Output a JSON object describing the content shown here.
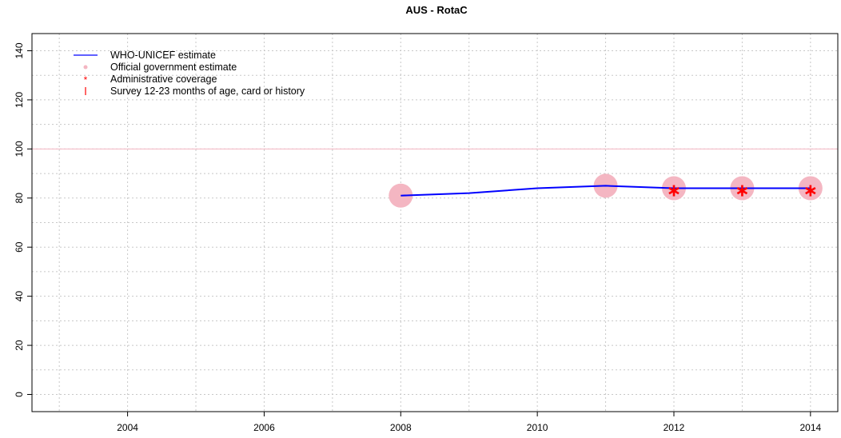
{
  "chart_data": {
    "type": "line",
    "title": "AUS  -  RotaC",
    "xlabel": "",
    "ylabel": "",
    "xlim": [
      2002.6,
      2014.4
    ],
    "ylim": [
      -7,
      147
    ],
    "x_ticks": [
      2004,
      2006,
      2008,
      2010,
      2012,
      2014
    ],
    "x_tick_labels": [
      "2004",
      "2006",
      "2008",
      "2010",
      "2012",
      "2014"
    ],
    "y_ticks": [
      0,
      20,
      40,
      60,
      80,
      100,
      120,
      140
    ],
    "y_tick_labels": [
      "0",
      "20",
      "40",
      "60",
      "80",
      "100",
      "120",
      "140"
    ],
    "x_grid": [
      2003,
      2004,
      2005,
      2006,
      2007,
      2008,
      2009,
      2010,
      2011,
      2012,
      2013,
      2014
    ],
    "y_grid": [
      0,
      10,
      20,
      30,
      40,
      50,
      60,
      70,
      80,
      90,
      100,
      110,
      120,
      130,
      140
    ],
    "grid": true,
    "reference_line": {
      "y": 100,
      "color": "#f4b6c2"
    },
    "legend_position": "top-left",
    "legend": [
      {
        "label": "WHO-UNICEF estimate",
        "symbol": "line",
        "color": "#0000ff"
      },
      {
        "label": "Official government estimate",
        "symbol": "circle",
        "color": "#f4b6c2"
      },
      {
        "label": "Administrative coverage",
        "symbol": "asterisk",
        "color": "#ff0000"
      },
      {
        "label": "Survey 12-23 months of age, card or history",
        "symbol": "bar",
        "color": "#ff0000"
      }
    ],
    "series": [
      {
        "name": "WHO-UNICEF estimate",
        "type": "line",
        "color": "#0000ff",
        "x": [
          2008,
          2009,
          2010,
          2011,
          2012,
          2013,
          2014
        ],
        "y": [
          81,
          82,
          84,
          85,
          84,
          84,
          84
        ]
      },
      {
        "name": "Official government estimate",
        "type": "points",
        "color": "#f4b6c2",
        "x": [
          2008,
          2011,
          2012,
          2013,
          2014
        ],
        "y": [
          81,
          85,
          84,
          84,
          84
        ]
      },
      {
        "name": "Administrative coverage",
        "type": "points",
        "color": "#ff0000",
        "x": [
          2012,
          2013,
          2014
        ],
        "y": [
          83,
          83,
          83
        ]
      }
    ]
  }
}
